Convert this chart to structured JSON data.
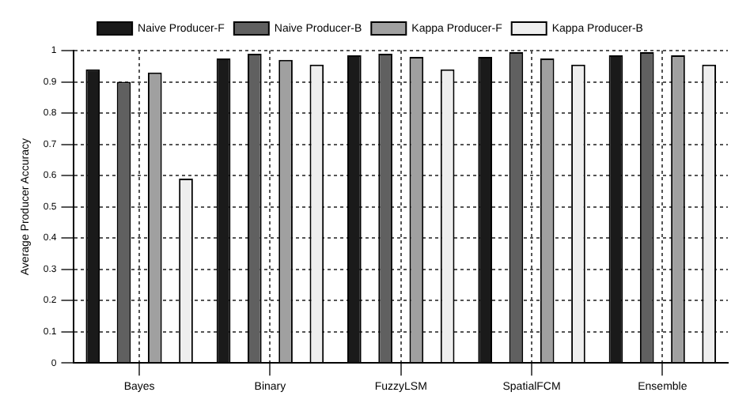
{
  "chart_data": {
    "type": "bar",
    "ylabel": "Average Producer Accuracy",
    "categories": [
      "Bayes",
      "Binary",
      "FuzzyLSM",
      "SpatialFCM",
      "Ensemble"
    ],
    "series": [
      {
        "name": "Naive Producer-F",
        "color": "#1a1a1a",
        "values": [
          0.94,
          0.975,
          0.985,
          0.98,
          0.985
        ]
      },
      {
        "name": "Naive Producer-B",
        "color": "#606060",
        "values": [
          0.9,
          0.99,
          0.99,
          0.995,
          0.995
        ]
      },
      {
        "name": "Kappa Producer-F",
        "color": "#a0a0a0",
        "values": [
          0.93,
          0.97,
          0.98,
          0.975,
          0.985
        ]
      },
      {
        "name": "Kappa Producer-B",
        "color": "#eeeeee",
        "values": [
          0.59,
          0.955,
          0.94,
          0.955,
          0.955
        ]
      }
    ],
    "ylim": [
      0,
      1
    ],
    "yticks": [
      0,
      0.1,
      0.2,
      0.3,
      0.4,
      0.5,
      0.6,
      0.7,
      0.8,
      0.9,
      1
    ],
    "grid": true,
    "legend": "top"
  }
}
